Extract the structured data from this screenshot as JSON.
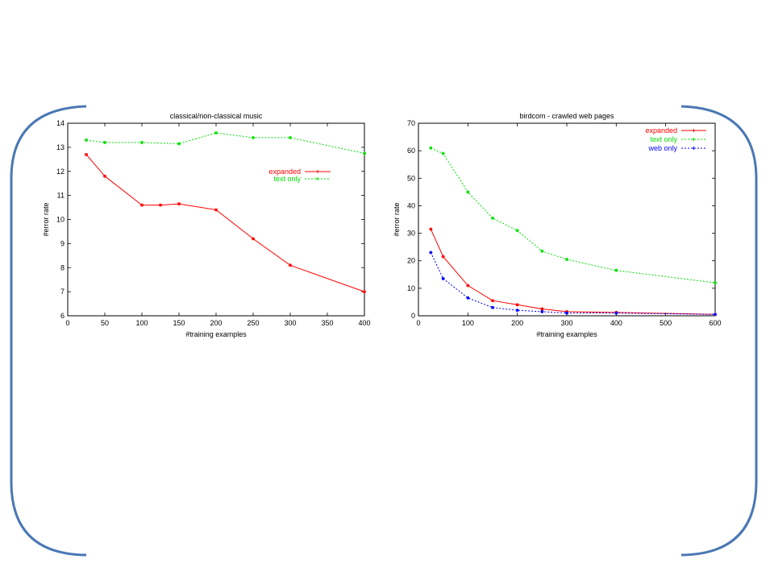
{
  "chart_data": [
    {
      "type": "line",
      "title": "classical/non-classical music",
      "xlabel": "#training examples",
      "ylabel": "#error rate",
      "xlim": [
        0,
        400
      ],
      "ylim": [
        6,
        14
      ],
      "xticks": [
        0,
        50,
        100,
        150,
        200,
        250,
        300,
        350,
        400
      ],
      "yticks": [
        6,
        7,
        8,
        9,
        10,
        11,
        12,
        13,
        14
      ],
      "grid": false,
      "legend_position": "upper-right",
      "series": [
        {
          "name": "expanded",
          "color": "#ff0000",
          "dashed": false,
          "x": [
            25,
            50,
            100,
            125,
            150,
            200,
            250,
            300,
            400
          ],
          "y": [
            12.7,
            11.8,
            10.6,
            10.6,
            10.65,
            10.4,
            9.2,
            8.1,
            7.0
          ]
        },
        {
          "name": "text only",
          "color": "#00e000",
          "dashed": true,
          "x": [
            25,
            50,
            100,
            150,
            200,
            250,
            300,
            400
          ],
          "y": [
            13.3,
            13.2,
            13.2,
            13.15,
            13.6,
            13.4,
            13.4,
            12.75
          ]
        }
      ]
    },
    {
      "type": "line",
      "title": "birdcom - crawled web pages",
      "xlabel": "#training examples",
      "ylabel": "#error rate",
      "xlim": [
        0,
        600
      ],
      "ylim": [
        0,
        70
      ],
      "xticks": [
        0,
        100,
        200,
        300,
        400,
        500,
        600
      ],
      "yticks": [
        0,
        10,
        20,
        30,
        40,
        50,
        60,
        70
      ],
      "grid": false,
      "legend_position": "upper-right",
      "series": [
        {
          "name": "expanded",
          "color": "#ff0000",
          "dashed": false,
          "x": [
            25,
            50,
            100,
            150,
            200,
            250,
            300,
            400,
            600
          ],
          "y": [
            31.5,
            21.5,
            11,
            5.5,
            4,
            2.5,
            1.5,
            1.2,
            0.5
          ]
        },
        {
          "name": "text only",
          "color": "#00e000",
          "dashed": true,
          "x": [
            25,
            50,
            100,
            150,
            200,
            250,
            300,
            400,
            600
          ],
          "y": [
            61,
            59,
            45,
            35.5,
            31,
            23.5,
            20.5,
            16.5,
            12
          ]
        },
        {
          "name": "web only",
          "color": "#0000ff",
          "dashed": true,
          "x": [
            25,
            50,
            100,
            150,
            200,
            250,
            300,
            400,
            600
          ],
          "y": [
            23,
            13.5,
            6.5,
            3,
            2,
            1.5,
            1,
            1,
            0.5
          ]
        }
      ]
    }
  ]
}
